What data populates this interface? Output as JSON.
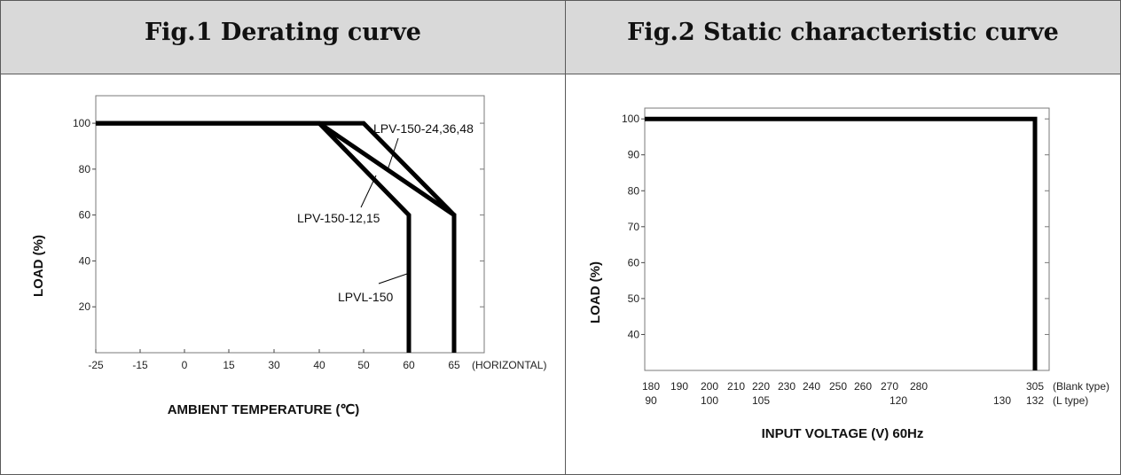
{
  "headers": {
    "fig1_title": "Fig.1 Derating curve",
    "fig2_title": "Fig.2 Static characteristic curve"
  },
  "chart_data": [
    {
      "type": "line",
      "title": "Fig.1 Derating curve",
      "xlabel": "AMBIENT TEMPERATURE (℃)",
      "ylabel": "LOAD (%)",
      "x_ticks": [
        -25,
        -15,
        0,
        15,
        30,
        40,
        50,
        60,
        65
      ],
      "x_tick_suffix": "(HORIZONTAL)",
      "y_ticks": [
        20,
        40,
        60,
        80,
        100
      ],
      "ylim": [
        0,
        112
      ],
      "grid": false,
      "series": [
        {
          "name": "LPV-150-24,36,48",
          "x": [
            -25,
            50,
            65,
            65
          ],
          "y": [
            100,
            100,
            60,
            0
          ]
        },
        {
          "name": "LPV-150-12,15",
          "x": [
            -25,
            40,
            65,
            65
          ],
          "y": [
            100,
            100,
            60,
            0
          ]
        },
        {
          "name": "LPVL-150",
          "x": [
            -25,
            40,
            60,
            60
          ],
          "y": [
            100,
            100,
            60,
            0
          ]
        }
      ]
    },
    {
      "type": "line",
      "title": "Fig.2 Static characteristic curve",
      "xlabel": "INPUT VOLTAGE (V) 60Hz",
      "ylabel": "LOAD (%)",
      "x_ticks_blank": [
        180,
        190,
        200,
        210,
        220,
        230,
        240,
        250,
        260,
        270,
        280,
        305
      ],
      "x_ticks_l": [
        90,
        100,
        105,
        120,
        130,
        132
      ],
      "x_row_labels": [
        "(Blank type)",
        "(L type)"
      ],
      "y_ticks": [
        40,
        50,
        60,
        70,
        80,
        90,
        100
      ],
      "ylim": [
        30,
        103
      ],
      "grid": false,
      "series": [
        {
          "name": "",
          "x": [
            180,
            305,
            305
          ],
          "y": [
            100,
            100,
            30
          ]
        }
      ]
    }
  ]
}
